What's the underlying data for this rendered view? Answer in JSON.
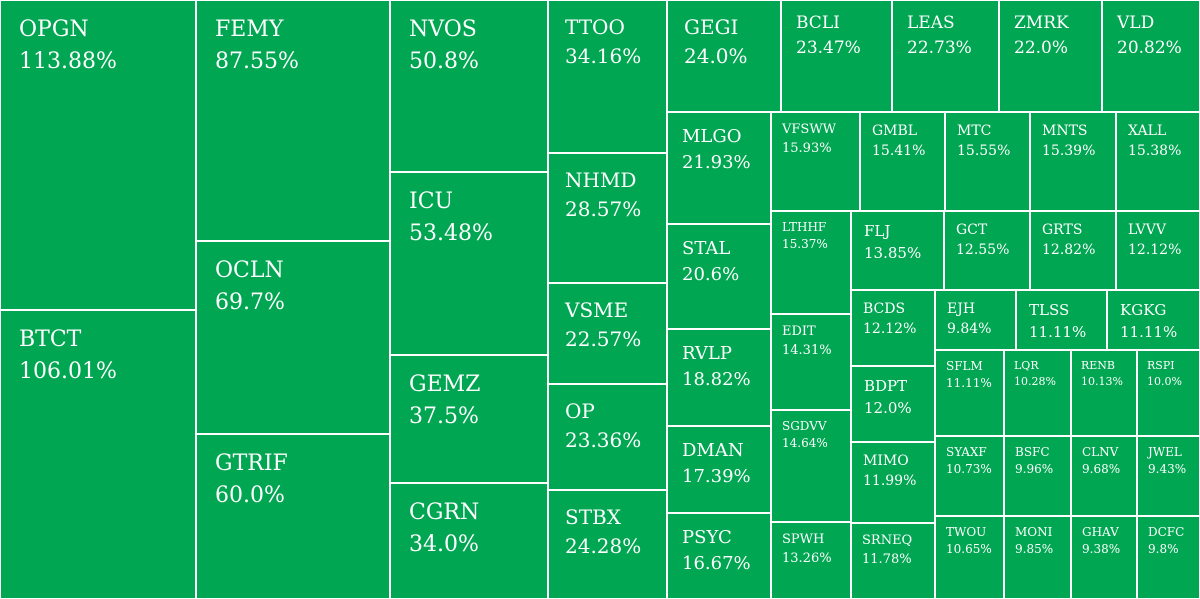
{
  "theme": {
    "tile_color": "#00a651",
    "border_color": "#ffffff",
    "text_color": "#ffffff"
  },
  "chart_data": {
    "type": "treemap",
    "title": "",
    "unit": "%",
    "tiles": [
      {
        "symbol": "OPGN",
        "change": "113.88%"
      },
      {
        "symbol": "BTCT",
        "change": "106.01%"
      },
      {
        "symbol": "FEMY",
        "change": "87.55%"
      },
      {
        "symbol": "OCLN",
        "change": "69.7%"
      },
      {
        "symbol": "GTRIF",
        "change": "60.0%"
      },
      {
        "symbol": "NVOS",
        "change": "50.8%"
      },
      {
        "symbol": "ICU",
        "change": "53.48%"
      },
      {
        "symbol": "GEMZ",
        "change": "37.5%"
      },
      {
        "symbol": "CGRN",
        "change": "34.0%"
      },
      {
        "symbol": "TTOO",
        "change": "34.16%"
      },
      {
        "symbol": "NHMD",
        "change": "28.57%"
      },
      {
        "symbol": "VSME",
        "change": "22.57%"
      },
      {
        "symbol": "OP",
        "change": "23.36%"
      },
      {
        "symbol": "STBX",
        "change": "24.28%"
      },
      {
        "symbol": "GEGI",
        "change": "24.0%"
      },
      {
        "symbol": "BCLI",
        "change": "23.47%"
      },
      {
        "symbol": "LEAS",
        "change": "22.73%"
      },
      {
        "symbol": "ZMRK",
        "change": "22.0%"
      },
      {
        "symbol": "VLD",
        "change": "20.82%"
      },
      {
        "symbol": "MLGO",
        "change": "21.93%"
      },
      {
        "symbol": "STAL",
        "change": "20.6%"
      },
      {
        "symbol": "RVLP",
        "change": "18.82%"
      },
      {
        "symbol": "DMAN",
        "change": "17.39%"
      },
      {
        "symbol": "PSYC",
        "change": "16.67%"
      },
      {
        "symbol": "VFSWW",
        "change": "15.93%"
      },
      {
        "symbol": "GMBL",
        "change": "15.41%"
      },
      {
        "symbol": "MTC",
        "change": "15.55%"
      },
      {
        "symbol": "MNTS",
        "change": "15.39%"
      },
      {
        "symbol": "XALL",
        "change": "15.38%"
      },
      {
        "symbol": "LTHHF",
        "change": "15.37%"
      },
      {
        "symbol": "EDIT",
        "change": "14.31%"
      },
      {
        "symbol": "SGDVV",
        "change": "14.64%"
      },
      {
        "symbol": "SPWH",
        "change": "13.26%"
      },
      {
        "symbol": "FLJ",
        "change": "13.85%"
      },
      {
        "symbol": "GCT",
        "change": "12.55%"
      },
      {
        "symbol": "GRTS",
        "change": "12.82%"
      },
      {
        "symbol": "LVVV",
        "change": "12.12%"
      },
      {
        "symbol": "BCDS",
        "change": "12.12%"
      },
      {
        "symbol": "EJH",
        "change": "9.84%"
      },
      {
        "symbol": "TLSS",
        "change": "11.11%"
      },
      {
        "symbol": "KGKG",
        "change": "11.11%"
      },
      {
        "symbol": "BDPT",
        "change": "12.0%"
      },
      {
        "symbol": "MIMO",
        "change": "11.99%"
      },
      {
        "symbol": "SRNEQ",
        "change": "11.78%"
      },
      {
        "symbol": "SFLM",
        "change": "11.11%"
      },
      {
        "symbol": "LQR",
        "change": "10.28%"
      },
      {
        "symbol": "RENB",
        "change": "10.13%"
      },
      {
        "symbol": "RSPI",
        "change": "10.0%"
      },
      {
        "symbol": "SYAXF",
        "change": "10.73%"
      },
      {
        "symbol": "BSFC",
        "change": "9.96%"
      },
      {
        "symbol": "CLNV",
        "change": "9.68%"
      },
      {
        "symbol": "JWEL",
        "change": "9.43%"
      },
      {
        "symbol": "TWOU",
        "change": "10.65%"
      },
      {
        "symbol": "MONI",
        "change": "9.85%"
      },
      {
        "symbol": "GHAV",
        "change": "9.38%"
      },
      {
        "symbol": "DCFC",
        "change": "9.8%"
      }
    ]
  }
}
